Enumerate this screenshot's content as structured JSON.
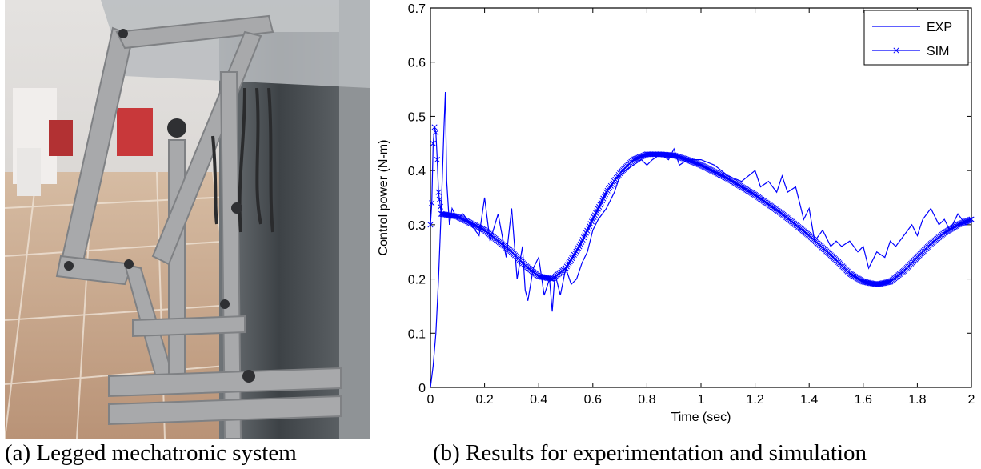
{
  "figure": {
    "caption_a": "(a) Legged mechatronic system",
    "caption_b": "(b) Results for experimentation and simulation",
    "photo_subject": "legged-mechatronic-system-photo"
  },
  "colors": {
    "series": "#0000ff",
    "axis": "#000000",
    "photo_floor": "#c9a98a",
    "photo_frame": "#a8a9ab"
  },
  "chart_data": {
    "type": "line",
    "xlabel": "Time (sec)",
    "ylabel": "Control power (N-m)",
    "xlim": [
      0,
      2
    ],
    "ylim": [
      0,
      0.7
    ],
    "xticks": [
      0,
      0.2,
      0.4,
      0.6,
      0.8,
      1,
      1.2,
      1.4,
      1.6,
      1.8,
      2
    ],
    "xtick_labels": [
      "0",
      "0.2",
      "0.4",
      "0.6",
      "0.8",
      "1",
      "1.2",
      "1.4",
      "1.6",
      "1.8",
      "2"
    ],
    "yticks": [
      0,
      0.1,
      0.2,
      0.3,
      0.4,
      0.5,
      0.6,
      0.7
    ],
    "ytick_labels": [
      "0",
      "0.1",
      "0.2",
      "0.3",
      "0.4",
      "0.5",
      "0.6",
      "0.7"
    ],
    "grid": false,
    "legend": "top-right",
    "series": [
      {
        "name": "EXP",
        "marker": "none",
        "x": [
          0,
          0.01,
          0.02,
          0.03,
          0.04,
          0.05,
          0.055,
          0.06,
          0.07,
          0.08,
          0.1,
          0.12,
          0.15,
          0.18,
          0.2,
          0.22,
          0.25,
          0.28,
          0.3,
          0.32,
          0.34,
          0.35,
          0.36,
          0.38,
          0.4,
          0.42,
          0.44,
          0.45,
          0.46,
          0.48,
          0.5,
          0.52,
          0.54,
          0.56,
          0.58,
          0.6,
          0.62,
          0.65,
          0.68,
          0.7,
          0.72,
          0.75,
          0.78,
          0.8,
          0.82,
          0.85,
          0.88,
          0.9,
          0.92,
          0.95,
          1.0,
          1.05,
          1.1,
          1.15,
          1.2,
          1.22,
          1.25,
          1.28,
          1.3,
          1.32,
          1.35,
          1.38,
          1.4,
          1.42,
          1.45,
          1.48,
          1.5,
          1.52,
          1.55,
          1.58,
          1.6,
          1.62,
          1.65,
          1.68,
          1.7,
          1.72,
          1.75,
          1.78,
          1.8,
          1.82,
          1.85,
          1.88,
          1.9,
          1.92,
          1.95,
          1.98,
          2.0
        ],
        "y": [
          0.0,
          0.04,
          0.1,
          0.2,
          0.33,
          0.48,
          0.545,
          0.38,
          0.3,
          0.33,
          0.31,
          0.32,
          0.3,
          0.28,
          0.35,
          0.27,
          0.32,
          0.24,
          0.33,
          0.2,
          0.26,
          0.18,
          0.16,
          0.22,
          0.24,
          0.17,
          0.2,
          0.14,
          0.21,
          0.17,
          0.22,
          0.19,
          0.2,
          0.23,
          0.25,
          0.29,
          0.31,
          0.33,
          0.36,
          0.39,
          0.4,
          0.41,
          0.42,
          0.41,
          0.42,
          0.43,
          0.42,
          0.44,
          0.41,
          0.42,
          0.42,
          0.41,
          0.39,
          0.38,
          0.4,
          0.37,
          0.38,
          0.36,
          0.39,
          0.36,
          0.37,
          0.31,
          0.33,
          0.27,
          0.29,
          0.26,
          0.27,
          0.26,
          0.27,
          0.25,
          0.26,
          0.22,
          0.25,
          0.24,
          0.27,
          0.26,
          0.28,
          0.3,
          0.28,
          0.31,
          0.33,
          0.3,
          0.31,
          0.29,
          0.32,
          0.3,
          0.31
        ]
      },
      {
        "name": "SIM",
        "marker": "x",
        "x": [
          0.0,
          0.005,
          0.01,
          0.015,
          0.02,
          0.025,
          0.03,
          0.04,
          0.1,
          0.2,
          0.3,
          0.35,
          0.4,
          0.45,
          0.5,
          0.55,
          0.6,
          0.65,
          0.7,
          0.75,
          0.8,
          0.85,
          0.9,
          0.95,
          1.0,
          1.1,
          1.2,
          1.3,
          1.4,
          1.5,
          1.55,
          1.6,
          1.65,
          1.7,
          1.75,
          1.8,
          1.85,
          1.9,
          1.95,
          2.0
        ],
        "y": [
          0.3,
          0.34,
          0.45,
          0.48,
          0.47,
          0.42,
          0.36,
          0.32,
          0.315,
          0.29,
          0.25,
          0.225,
          0.205,
          0.2,
          0.22,
          0.26,
          0.31,
          0.36,
          0.395,
          0.42,
          0.43,
          0.43,
          0.428,
          0.42,
          0.41,
          0.385,
          0.355,
          0.32,
          0.28,
          0.235,
          0.21,
          0.195,
          0.19,
          0.195,
          0.215,
          0.24,
          0.265,
          0.285,
          0.3,
          0.31
        ]
      }
    ]
  }
}
